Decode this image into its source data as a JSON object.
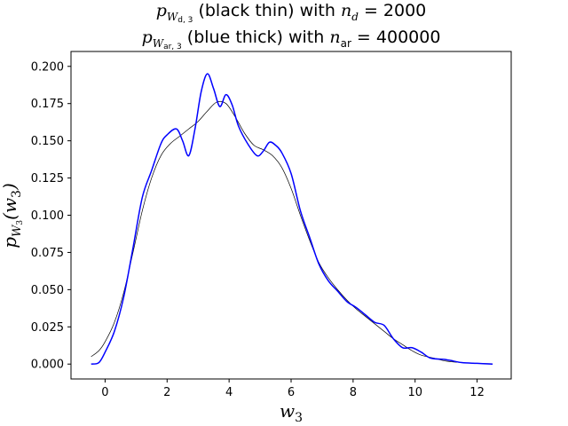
{
  "chart_data": {
    "type": "line",
    "title_line1": "pW d,3 (black thin) with n_d = 2000",
    "title_line2": "pW ar,3 (blue thick) with n_ar = 400000",
    "xlabel": "w3",
    "ylabel": "pW3(w3)",
    "xlim": [
      -1.1,
      13.1
    ],
    "ylim": [
      -0.01,
      0.21
    ],
    "xticks": [
      0,
      2,
      4,
      6,
      8,
      10,
      12
    ],
    "xtick_labels": [
      "0",
      "2",
      "4",
      "6",
      "8",
      "10",
      "12"
    ],
    "yticks": [
      0.0,
      0.025,
      0.05,
      0.075,
      0.1,
      0.125,
      0.15,
      0.175,
      0.2
    ],
    "ytick_labels": [
      "0.000",
      "0.025",
      "0.050",
      "0.075",
      "0.100",
      "0.125",
      "0.150",
      "0.175",
      "0.200"
    ],
    "grid": false,
    "series": [
      {
        "color": "#000000",
        "line_width": "thin",
        "points": [
          [
            -0.45,
            0.005
          ],
          [
            -0.2,
            0.009
          ],
          [
            0.0,
            0.015
          ],
          [
            0.3,
            0.028
          ],
          [
            0.6,
            0.048
          ],
          [
            0.9,
            0.075
          ],
          [
            1.2,
            0.103
          ],
          [
            1.5,
            0.125
          ],
          [
            1.8,
            0.14
          ],
          [
            2.1,
            0.148
          ],
          [
            2.4,
            0.153
          ],
          [
            2.7,
            0.158
          ],
          [
            3.0,
            0.163
          ],
          [
            3.3,
            0.17
          ],
          [
            3.6,
            0.176
          ],
          [
            3.9,
            0.175
          ],
          [
            4.2,
            0.166
          ],
          [
            4.5,
            0.155
          ],
          [
            4.8,
            0.147
          ],
          [
            5.1,
            0.144
          ],
          [
            5.4,
            0.14
          ],
          [
            5.7,
            0.132
          ],
          [
            6.0,
            0.118
          ],
          [
            6.3,
            0.1
          ],
          [
            6.6,
            0.083
          ],
          [
            6.9,
            0.068
          ],
          [
            7.2,
            0.058
          ],
          [
            7.5,
            0.05
          ],
          [
            7.8,
            0.043
          ],
          [
            8.1,
            0.037
          ],
          [
            8.4,
            0.032
          ],
          [
            8.7,
            0.027
          ],
          [
            9.0,
            0.022
          ],
          [
            9.3,
            0.017
          ],
          [
            9.6,
            0.013
          ],
          [
            9.9,
            0.009
          ],
          [
            10.2,
            0.006
          ],
          [
            10.6,
            0.004
          ],
          [
            11.0,
            0.002
          ],
          [
            11.5,
            0.001
          ],
          [
            12.0,
            0.0005
          ],
          [
            12.5,
            0.0002
          ]
        ]
      },
      {
        "color": "#0000ff",
        "line_width": "thick",
        "points": [
          [
            -0.45,
            0.0
          ],
          [
            -0.2,
            0.001
          ],
          [
            0.0,
            0.008
          ],
          [
            0.3,
            0.022
          ],
          [
            0.6,
            0.045
          ],
          [
            0.9,
            0.078
          ],
          [
            1.2,
            0.112
          ],
          [
            1.5,
            0.13
          ],
          [
            1.8,
            0.148
          ],
          [
            2.0,
            0.154
          ],
          [
            2.3,
            0.158
          ],
          [
            2.5,
            0.15
          ],
          [
            2.7,
            0.14
          ],
          [
            2.9,
            0.158
          ],
          [
            3.1,
            0.183
          ],
          [
            3.3,
            0.195
          ],
          [
            3.5,
            0.185
          ],
          [
            3.7,
            0.173
          ],
          [
            3.9,
            0.181
          ],
          [
            4.1,
            0.174
          ],
          [
            4.3,
            0.16
          ],
          [
            4.6,
            0.148
          ],
          [
            4.9,
            0.14
          ],
          [
            5.1,
            0.143
          ],
          [
            5.3,
            0.149
          ],
          [
            5.5,
            0.147
          ],
          [
            5.7,
            0.142
          ],
          [
            6.0,
            0.128
          ],
          [
            6.3,
            0.103
          ],
          [
            6.6,
            0.085
          ],
          [
            6.9,
            0.067
          ],
          [
            7.2,
            0.056
          ],
          [
            7.5,
            0.049
          ],
          [
            7.8,
            0.042
          ],
          [
            8.1,
            0.038
          ],
          [
            8.4,
            0.033
          ],
          [
            8.7,
            0.028
          ],
          [
            9.0,
            0.026
          ],
          [
            9.3,
            0.017
          ],
          [
            9.6,
            0.011
          ],
          [
            9.9,
            0.011
          ],
          [
            10.2,
            0.008
          ],
          [
            10.5,
            0.004
          ],
          [
            11.0,
            0.003
          ],
          [
            11.5,
            0.001
          ],
          [
            12.0,
            0.0005
          ],
          [
            12.5,
            0.0
          ]
        ]
      }
    ]
  }
}
